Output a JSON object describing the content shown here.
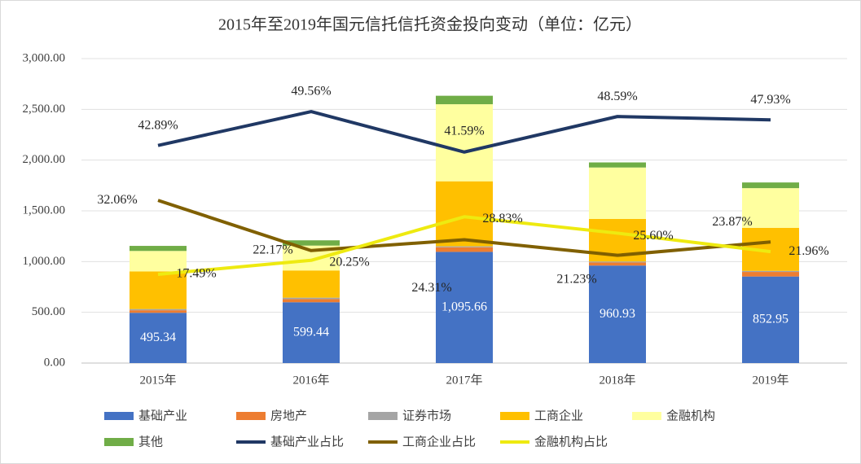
{
  "chart_data": {
    "type": "combo",
    "stacked": true,
    "title": "2015年至2019年国元信托信托资金投向变动（单位：亿元）",
    "categories": [
      "2015年",
      "2016年",
      "2017年",
      "2018年",
      "2019年"
    ],
    "ylim": [
      0,
      3000
    ],
    "yticks": [
      {
        "value": 0,
        "label": "0.00"
      },
      {
        "value": 500,
        "label": "500.00"
      },
      {
        "value": 1000,
        "label": "1,000.00"
      },
      {
        "value": 1500,
        "label": "1,500.00"
      },
      {
        "value": 2000,
        "label": "2,000.00"
      },
      {
        "value": 2500,
        "label": "2,500.00"
      },
      {
        "value": 3000,
        "label": "3,000.00"
      }
    ],
    "y2lim": [
      0,
      60
    ],
    "series": [
      {
        "name": "基础产业",
        "type": "bar",
        "color": "#4472c4",
        "values": [
          495.34,
          599.44,
          1095.66,
          960.93,
          852.95
        ],
        "value_labels": [
          "495.34",
          "599.44",
          "1,095.66",
          "960.93",
          "852.95"
        ]
      },
      {
        "name": "房地产",
        "type": "bar",
        "color": "#ed7d31",
        "values": [
          25,
          30,
          45,
          30,
          45
        ]
      },
      {
        "name": "证券市场",
        "type": "bar",
        "color": "#a5a5a5",
        "values": [
          12,
          15,
          10,
          10,
          10
        ]
      },
      {
        "name": "工商企业",
        "type": "bar",
        "color": "#ffc000",
        "values": [
          370.3,
          268.1,
          640.4,
          419.8,
          424.8
        ]
      },
      {
        "name": "金融机构",
        "type": "bar",
        "color": "#ffff9f",
        "values": [
          202,
          244.9,
          759.4,
          506.3,
          390.8
        ]
      },
      {
        "name": "其他",
        "type": "bar",
        "color": "#70ad47",
        "values": [
          50,
          52,
          83.5,
          50,
          56
        ]
      },
      {
        "name": "基础产业占比",
        "type": "line",
        "axis": "y2",
        "color": "#203864",
        "values": [
          42.89,
          49.56,
          41.59,
          48.59,
          47.93
        ],
        "value_labels": [
          "42.89%",
          "49.56%",
          "41.59%",
          "48.59%",
          "47.93%"
        ]
      },
      {
        "name": "工商企业占比",
        "type": "line",
        "axis": "y2",
        "color": "#806000",
        "values": [
          32.06,
          22.17,
          24.31,
          21.23,
          23.87
        ],
        "value_labels": [
          "32.06%",
          "22.17%",
          "24.31%",
          "21.23%",
          "23.87%"
        ]
      },
      {
        "name": "金融机构占比",
        "type": "line",
        "axis": "y2",
        "color": "#eeea10",
        "values": [
          17.49,
          20.25,
          28.83,
          25.6,
          21.96
        ],
        "value_labels": [
          "17.49%",
          "20.25%",
          "28.83%",
          "25.60%",
          "21.96%"
        ]
      }
    ]
  }
}
